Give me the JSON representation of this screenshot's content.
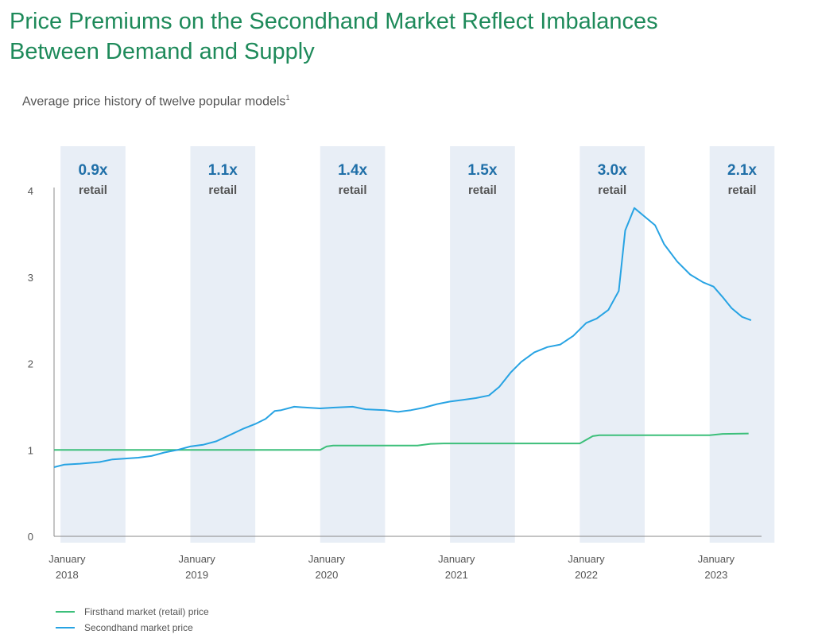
{
  "title_line1": "Price Premiums on the Secondhand Market Reflect Imbalances",
  "title_line2": "Between Demand and Supply",
  "subtitle": "Average price history of twelve popular models",
  "subtitle_footnote": "1",
  "colors": {
    "firsthand": "#3cbf7a",
    "secondhand": "#27a3e3",
    "band": "#e8eef6",
    "premium": "#1f6fa8",
    "retail": "#555555"
  },
  "chart_data": {
    "type": "line",
    "title": "Average price history of twelve popular models",
    "xlabel": "",
    "ylabel": "",
    "ylim": [
      0,
      4
    ],
    "xlim": [
      2017.9,
      2023.35
    ],
    "y_ticks": [
      "0",
      "1",
      "2",
      "3",
      "4"
    ],
    "x_ticks": [
      {
        "line1": "January",
        "line2": "2018",
        "x": 2018.0
      },
      {
        "line1": "January",
        "line2": "2019",
        "x": 2019.0
      },
      {
        "line1": "January",
        "line2": "2020",
        "x": 2020.0
      },
      {
        "line1": "January",
        "line2": "2021",
        "x": 2021.0
      },
      {
        "line1": "January",
        "line2": "2022",
        "x": 2022.0
      },
      {
        "line1": "January",
        "line2": "2023",
        "x": 2023.0
      }
    ],
    "bands": [
      {
        "x0": 2017.95,
        "x1": 2018.45,
        "premium": "0.9x",
        "label": "retail"
      },
      {
        "x0": 2018.95,
        "x1": 2019.45,
        "premium": "1.1x",
        "label": "retail"
      },
      {
        "x0": 2019.95,
        "x1": 2020.45,
        "premium": "1.4x",
        "label": "retail"
      },
      {
        "x0": 2020.95,
        "x1": 2021.45,
        "premium": "1.5x",
        "label": "retail"
      },
      {
        "x0": 2021.95,
        "x1": 2022.45,
        "premium": "3.0x",
        "label": "retail"
      },
      {
        "x0": 2022.95,
        "x1": 2023.45,
        "premium": "2.1x",
        "label": "retail"
      }
    ],
    "series": [
      {
        "name": "Firsthand market (retail) price",
        "color": "#3cbf7a",
        "points": [
          [
            2017.9,
            1.0
          ],
          [
            2019.95,
            1.0
          ],
          [
            2020.0,
            1.04
          ],
          [
            2020.05,
            1.05
          ],
          [
            2020.7,
            1.05
          ],
          [
            2020.8,
            1.07
          ],
          [
            2020.9,
            1.075
          ],
          [
            2021.95,
            1.075
          ],
          [
            2022.05,
            1.16
          ],
          [
            2022.1,
            1.17
          ],
          [
            2022.95,
            1.17
          ],
          [
            2023.05,
            1.185
          ],
          [
            2023.25,
            1.19
          ]
        ]
      },
      {
        "name": "Secondhand market price",
        "color": "#27a3e3",
        "points": [
          [
            2017.9,
            0.8
          ],
          [
            2017.98,
            0.83
          ],
          [
            2018.1,
            0.84
          ],
          [
            2018.25,
            0.86
          ],
          [
            2018.35,
            0.89
          ],
          [
            2018.45,
            0.9
          ],
          [
            2018.55,
            0.91
          ],
          [
            2018.65,
            0.93
          ],
          [
            2018.75,
            0.97
          ],
          [
            2018.85,
            1.0
          ],
          [
            2018.95,
            1.04
          ],
          [
            2019.05,
            1.06
          ],
          [
            2019.15,
            1.1
          ],
          [
            2019.25,
            1.17
          ],
          [
            2019.35,
            1.24
          ],
          [
            2019.45,
            1.3
          ],
          [
            2019.53,
            1.36
          ],
          [
            2019.6,
            1.45
          ],
          [
            2019.65,
            1.46
          ],
          [
            2019.75,
            1.5
          ],
          [
            2019.85,
            1.49
          ],
          [
            2019.95,
            1.48
          ],
          [
            2020.05,
            1.49
          ],
          [
            2020.2,
            1.5
          ],
          [
            2020.3,
            1.47
          ],
          [
            2020.45,
            1.46
          ],
          [
            2020.55,
            1.44
          ],
          [
            2020.65,
            1.46
          ],
          [
            2020.75,
            1.49
          ],
          [
            2020.85,
            1.53
          ],
          [
            2020.95,
            1.56
          ],
          [
            2021.05,
            1.58
          ],
          [
            2021.15,
            1.6
          ],
          [
            2021.25,
            1.63
          ],
          [
            2021.33,
            1.73
          ],
          [
            2021.42,
            1.9
          ],
          [
            2021.5,
            2.02
          ],
          [
            2021.6,
            2.13
          ],
          [
            2021.7,
            2.19
          ],
          [
            2021.8,
            2.22
          ],
          [
            2021.9,
            2.32
          ],
          [
            2022.0,
            2.47
          ],
          [
            2022.08,
            2.52
          ],
          [
            2022.17,
            2.62
          ],
          [
            2022.25,
            2.84
          ],
          [
            2022.3,
            3.54
          ],
          [
            2022.37,
            3.8
          ],
          [
            2022.45,
            3.7
          ],
          [
            2022.53,
            3.6
          ],
          [
            2022.6,
            3.38
          ],
          [
            2022.7,
            3.18
          ],
          [
            2022.8,
            3.03
          ],
          [
            2022.9,
            2.94
          ],
          [
            2022.98,
            2.89
          ],
          [
            2023.05,
            2.77
          ],
          [
            2023.12,
            2.64
          ],
          [
            2023.2,
            2.54
          ],
          [
            2023.27,
            2.5
          ]
        ]
      }
    ],
    "legend_position": "bottom-left"
  }
}
